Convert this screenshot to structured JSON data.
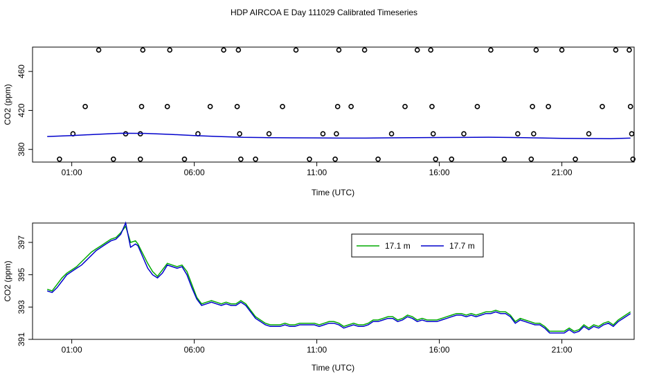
{
  "title": "HDP AIRCOA E  Day 111029  Calibrated Timeseries",
  "chart_data": [
    {
      "type": "scatter",
      "xlabel": "Time (UTC)",
      "ylabel": "CO2 (ppm)",
      "xlim": [
        23.4,
        47.95
      ],
      "ylim": [
        367,
        485
      ],
      "x_ticks": [
        25,
        30,
        35,
        40,
        45
      ],
      "x_tick_labels": [
        "01:00",
        "06:00",
        "11:00",
        "16:00",
        "21:00"
      ],
      "y_ticks": [
        380,
        420,
        460
      ],
      "y_tick_labels": [
        "380",
        "420",
        "460"
      ],
      "grid": false,
      "line_color": "#0000cc",
      "line": {
        "x": [
          24,
          25,
          26,
          27,
          28,
          29,
          30,
          31,
          32,
          33,
          34,
          35,
          36,
          37,
          38,
          39,
          40,
          41,
          42,
          43,
          44,
          45,
          46,
          47,
          47.8
        ],
        "y": [
          393.2,
          394.2,
          395.4,
          396.6,
          396.4,
          395.4,
          394.2,
          393.2,
          392.4,
          392.1,
          391.9,
          391.8,
          391.6,
          391.6,
          391.9,
          392.0,
          392.2,
          392.3,
          392.5,
          392.2,
          391.8,
          391.4,
          391.2,
          391.0,
          391.6
        ]
      },
      "points": [
        {
          "x": 24.5,
          "y": 370
        },
        {
          "x": 25.05,
          "y": 396
        },
        {
          "x": 25.55,
          "y": 424
        },
        {
          "x": 26.1,
          "y": 482
        },
        {
          "x": 26.7,
          "y": 370
        },
        {
          "x": 27.2,
          "y": 396
        },
        {
          "x": 27.8,
          "y": 396
        },
        {
          "x": 27.8,
          "y": 370
        },
        {
          "x": 27.85,
          "y": 424
        },
        {
          "x": 27.9,
          "y": 482
        },
        {
          "x": 28.9,
          "y": 424
        },
        {
          "x": 29.0,
          "y": 482
        },
        {
          "x": 29.6,
          "y": 370
        },
        {
          "x": 30.15,
          "y": 396
        },
        {
          "x": 30.65,
          "y": 424
        },
        {
          "x": 31.2,
          "y": 482
        },
        {
          "x": 31.75,
          "y": 424
        },
        {
          "x": 31.8,
          "y": 482
        },
        {
          "x": 31.85,
          "y": 396
        },
        {
          "x": 31.9,
          "y": 370
        },
        {
          "x": 32.5,
          "y": 370
        },
        {
          "x": 33.05,
          "y": 396
        },
        {
          "x": 33.6,
          "y": 424
        },
        {
          "x": 34.15,
          "y": 482
        },
        {
          "x": 34.7,
          "y": 370
        },
        {
          "x": 35.25,
          "y": 396
        },
        {
          "x": 35.75,
          "y": 370
        },
        {
          "x": 35.8,
          "y": 396
        },
        {
          "x": 35.85,
          "y": 424
        },
        {
          "x": 35.9,
          "y": 482
        },
        {
          "x": 36.4,
          "y": 424
        },
        {
          "x": 36.95,
          "y": 482
        },
        {
          "x": 37.5,
          "y": 370
        },
        {
          "x": 38.05,
          "y": 396
        },
        {
          "x": 38.6,
          "y": 424
        },
        {
          "x": 39.1,
          "y": 482
        },
        {
          "x": 39.65,
          "y": 482
        },
        {
          "x": 39.7,
          "y": 424
        },
        {
          "x": 39.75,
          "y": 396
        },
        {
          "x": 39.85,
          "y": 370
        },
        {
          "x": 40.5,
          "y": 370
        },
        {
          "x": 41.0,
          "y": 396
        },
        {
          "x": 41.55,
          "y": 424
        },
        {
          "x": 42.1,
          "y": 482
        },
        {
          "x": 42.65,
          "y": 370
        },
        {
          "x": 43.2,
          "y": 396
        },
        {
          "x": 43.75,
          "y": 370
        },
        {
          "x": 43.8,
          "y": 424
        },
        {
          "x": 43.85,
          "y": 396
        },
        {
          "x": 43.95,
          "y": 482
        },
        {
          "x": 44.45,
          "y": 424
        },
        {
          "x": 45.0,
          "y": 482
        },
        {
          "x": 45.55,
          "y": 370
        },
        {
          "x": 46.1,
          "y": 396
        },
        {
          "x": 46.65,
          "y": 424
        },
        {
          "x": 47.2,
          "y": 482
        },
        {
          "x": 47.75,
          "y": 482
        },
        {
          "x": 47.8,
          "y": 424
        },
        {
          "x": 47.85,
          "y": 396
        },
        {
          "x": 47.9,
          "y": 370
        }
      ]
    },
    {
      "type": "line",
      "xlabel": "Time (UTC)",
      "ylabel": "CO2 (ppm)",
      "xlim": [
        23.4,
        47.95
      ],
      "ylim": [
        391,
        398.2
      ],
      "x_ticks": [
        25,
        30,
        35,
        40,
        45
      ],
      "x_tick_labels": [
        "01:00",
        "06:00",
        "11:00",
        "16:00",
        "21:00"
      ],
      "y_ticks": [
        391,
        393,
        395,
        397
      ],
      "y_tick_labels": [
        "391",
        "393",
        "395",
        "397"
      ],
      "grid": false,
      "legend": "top-right",
      "x": [
        24.0,
        24.2,
        24.4,
        24.6,
        24.8,
        25.0,
        25.2,
        25.4,
        25.6,
        25.8,
        26.0,
        26.2,
        26.4,
        26.6,
        26.8,
        27.0,
        27.2,
        27.4,
        27.6,
        27.7,
        27.9,
        28.1,
        28.3,
        28.5,
        28.7,
        28.9,
        29.1,
        29.3,
        29.5,
        29.7,
        29.9,
        30.1,
        30.3,
        30.5,
        30.7,
        30.9,
        31.1,
        31.3,
        31.5,
        31.7,
        31.9,
        32.1,
        32.3,
        32.5,
        32.7,
        32.9,
        33.1,
        33.3,
        33.5,
        33.7,
        33.9,
        34.1,
        34.3,
        34.5,
        34.7,
        34.9,
        35.1,
        35.3,
        35.5,
        35.7,
        35.9,
        36.1,
        36.3,
        36.5,
        36.7,
        36.9,
        37.1,
        37.3,
        37.5,
        37.7,
        37.9,
        38.1,
        38.3,
        38.5,
        38.7,
        38.9,
        39.1,
        39.3,
        39.5,
        39.7,
        39.9,
        40.1,
        40.3,
        40.5,
        40.7,
        40.9,
        41.1,
        41.3,
        41.5,
        41.7,
        41.9,
        42.1,
        42.3,
        42.5,
        42.7,
        42.9,
        43.1,
        43.3,
        43.5,
        43.7,
        43.9,
        44.1,
        44.3,
        44.5,
        44.7,
        44.9,
        45.1,
        45.3,
        45.5,
        45.7,
        45.9,
        46.1,
        46.3,
        46.5,
        46.7,
        46.9,
        47.1,
        47.3,
        47.5,
        47.8
      ],
      "series": [
        {
          "name": "17.1 m",
          "color": "#00aa00",
          "values": [
            394.1,
            394.0,
            394.4,
            394.8,
            395.1,
            395.3,
            395.5,
            395.8,
            396.1,
            396.4,
            396.6,
            396.8,
            397.0,
            397.2,
            397.3,
            397.6,
            398.0,
            397.0,
            397.1,
            396.9,
            396.3,
            395.7,
            395.2,
            394.9,
            395.3,
            395.7,
            395.6,
            395.5,
            395.6,
            395.2,
            394.4,
            393.6,
            393.2,
            393.3,
            393.4,
            393.3,
            393.2,
            393.3,
            393.2,
            393.2,
            393.4,
            393.2,
            392.8,
            392.4,
            392.2,
            392.0,
            391.9,
            391.9,
            391.9,
            392.0,
            391.9,
            391.9,
            392.0,
            392.0,
            392.0,
            392.0,
            391.9,
            392.0,
            392.1,
            392.1,
            392.0,
            391.8,
            391.9,
            392.0,
            391.9,
            391.9,
            392.0,
            392.2,
            392.2,
            392.3,
            392.4,
            392.4,
            392.2,
            392.3,
            392.5,
            392.4,
            392.2,
            392.3,
            392.2,
            392.2,
            392.2,
            392.3,
            392.4,
            392.5,
            392.6,
            392.6,
            392.5,
            392.6,
            392.5,
            392.6,
            392.7,
            392.7,
            392.8,
            392.7,
            392.7,
            392.5,
            392.1,
            392.3,
            392.2,
            392.1,
            392.0,
            392.0,
            391.8,
            391.5,
            391.5,
            391.5,
            391.5,
            391.7,
            391.5,
            391.6,
            391.9,
            391.7,
            391.9,
            391.8,
            392.0,
            392.1,
            391.9,
            392.2,
            392.4,
            392.7
          ]
        },
        {
          "name": "17.7 m",
          "color": "#0000cc",
          "values": [
            394.0,
            393.9,
            394.2,
            394.6,
            395.0,
            395.2,
            395.4,
            395.6,
            395.9,
            396.2,
            396.5,
            396.7,
            396.9,
            397.1,
            397.2,
            397.5,
            398.2,
            396.7,
            396.9,
            396.8,
            396.1,
            395.4,
            395.0,
            394.8,
            395.1,
            395.6,
            395.5,
            395.4,
            395.5,
            395.0,
            394.2,
            393.5,
            393.1,
            393.2,
            393.3,
            393.2,
            393.1,
            393.2,
            393.1,
            393.1,
            393.3,
            393.1,
            392.7,
            392.3,
            392.1,
            391.9,
            391.8,
            391.8,
            391.8,
            391.9,
            391.8,
            391.8,
            391.9,
            391.9,
            391.9,
            391.9,
            391.8,
            391.9,
            392.0,
            392.0,
            391.9,
            391.7,
            391.8,
            391.9,
            391.8,
            391.8,
            391.9,
            392.1,
            392.1,
            392.2,
            392.3,
            392.3,
            392.1,
            392.2,
            392.4,
            392.3,
            392.1,
            392.2,
            392.1,
            392.1,
            392.1,
            392.2,
            392.3,
            392.4,
            392.5,
            392.5,
            392.4,
            392.5,
            392.4,
            392.5,
            392.6,
            392.6,
            392.7,
            392.6,
            392.6,
            392.4,
            392.0,
            392.2,
            392.1,
            392.0,
            391.9,
            391.9,
            391.7,
            391.4,
            391.4,
            391.4,
            391.4,
            391.6,
            391.4,
            391.5,
            391.8,
            391.6,
            391.8,
            391.7,
            391.9,
            392.0,
            391.8,
            392.1,
            392.3,
            392.6
          ]
        }
      ]
    }
  ]
}
